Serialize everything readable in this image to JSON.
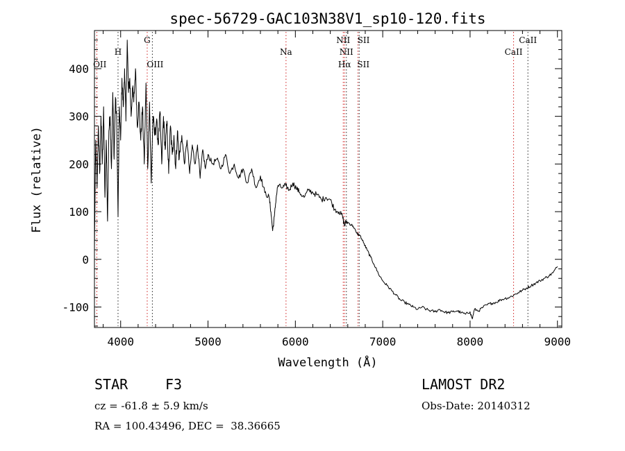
{
  "chart_data": {
    "type": "line",
    "title": "spec-56729-GAC103N38V1_sp10-120.fits",
    "xlabel": "Wavelength (Å)",
    "ylabel": "Flux (relative)",
    "xlim": [
      3700,
      9050
    ],
    "ylim": [
      -143,
      480
    ],
    "x_ticks": [
      4000,
      5000,
      6000,
      7000,
      8000,
      9000
    ],
    "y_ticks": [
      -100,
      0,
      100,
      200,
      300,
      400
    ],
    "grid": false,
    "series": [
      {
        "color": "#000000",
        "x": [
          3700,
          3715,
          3730,
          3745,
          3760,
          3775,
          3790,
          3805,
          3820,
          3835,
          3850,
          3865,
          3880,
          3895,
          3910,
          3925,
          3940,
          3955,
          3970,
          3985,
          4000,
          4015,
          4030,
          4045,
          4060,
          4075,
          4090,
          4105,
          4120,
          4135,
          4150,
          4170,
          4190,
          4210,
          4230,
          4250,
          4270,
          4290,
          4310,
          4330,
          4350,
          4370,
          4390,
          4410,
          4430,
          4450,
          4470,
          4490,
          4510,
          4530,
          4550,
          4570,
          4590,
          4610,
          4630,
          4650,
          4670,
          4700,
          4730,
          4760,
          4790,
          4820,
          4850,
          4880,
          4910,
          4940,
          4970,
          5000,
          5050,
          5100,
          5150,
          5200,
          5250,
          5300,
          5350,
          5400,
          5450,
          5500,
          5550,
          5600,
          5650,
          5700,
          5720,
          5740,
          5760,
          5780,
          5800,
          5850,
          5890,
          5930,
          5970,
          6010,
          6050,
          6100,
          6150,
          6200,
          6250,
          6300,
          6350,
          6400,
          6450,
          6500,
          6540,
          6563,
          6580,
          6620,
          6660,
          6700,
          6740,
          6780,
          6820,
          6860,
          6900,
          6950,
          7000,
          7050,
          7100,
          7150,
          7200,
          7250,
          7300,
          7350,
          7400,
          7450,
          7500,
          7550,
          7600,
          7650,
          7700,
          7750,
          7800,
          7850,
          7900,
          7950,
          8000,
          8025,
          8050,
          8100,
          8150,
          8200,
          8250,
          8300,
          8350,
          8400,
          8450,
          8500,
          8550,
          8600,
          8650,
          8700,
          8750,
          8800,
          8850,
          8900,
          8950,
          9000
        ],
        "y": [
          20,
          250,
          150,
          280,
          180,
          300,
          200,
          320,
          130,
          250,
          80,
          270,
          300,
          190,
          350,
          210,
          340,
          290,
          90,
          320,
          250,
          380,
          320,
          400,
          290,
          460,
          350,
          380,
          300,
          360,
          330,
          400,
          280,
          330,
          250,
          320,
          200,
          370,
          190,
          330,
          160,
          300,
          260,
          290,
          240,
          310,
          200,
          300,
          230,
          290,
          180,
          280,
          220,
          260,
          190,
          270,
          210,
          260,
          200,
          250,
          180,
          240,
          200,
          240,
          170,
          230,
          190,
          220,
          200,
          210,
          190,
          220,
          180,
          200,
          170,
          190,
          160,
          190,
          150,
          175,
          140,
          130,
          100,
          60,
          90,
          130,
          155,
          150,
          155,
          145,
          160,
          150,
          140,
          130,
          145,
          140,
          135,
          125,
          130,
          125,
          105,
          100,
          90,
          70,
          80,
          75,
          70,
          55,
          50,
          35,
          20,
          5,
          -10,
          -30,
          -45,
          -55,
          -65,
          -75,
          -85,
          -90,
          -95,
          -100,
          -105,
          -100,
          -105,
          -108,
          -110,
          -105,
          -110,
          -112,
          -110,
          -108,
          -112,
          -115,
          -110,
          -125,
          -105,
          -108,
          -100,
          -95,
          -92,
          -90,
          -85,
          -82,
          -80,
          -75,
          -70,
          -65,
          -60,
          -55,
          -50,
          -45,
          -40,
          -35,
          -28,
          -15
        ]
      }
    ],
    "annotations": [
      {
        "label": "OII",
        "x": 3727
      },
      {
        "label": "H",
        "x": 3970
      },
      {
        "label": "G",
        "x": 4304
      },
      {
        "label": "OIII",
        "x": 4363
      },
      {
        "label": "Na",
        "x": 5893
      },
      {
        "label": "NII",
        "x": 6548
      },
      {
        "label": "NII",
        "x": 6584
      },
      {
        "label": "Hα",
        "x": 6563
      },
      {
        "label": "SII",
        "x": 6717
      },
      {
        "label": "SII",
        "x": 6731
      },
      {
        "label": "CaII",
        "x": 8498
      },
      {
        "label": "CaII",
        "x": 8662
      }
    ]
  },
  "info": {
    "object_class": "STAR",
    "subclass": "F3",
    "survey": "LAMOST DR2",
    "velocity": "cz = -61.8 ± 5.9 km/s",
    "obs_date": "Obs-Date: 20140312",
    "coordinates": "RA = 100.43496, DEC =  38.36665"
  }
}
